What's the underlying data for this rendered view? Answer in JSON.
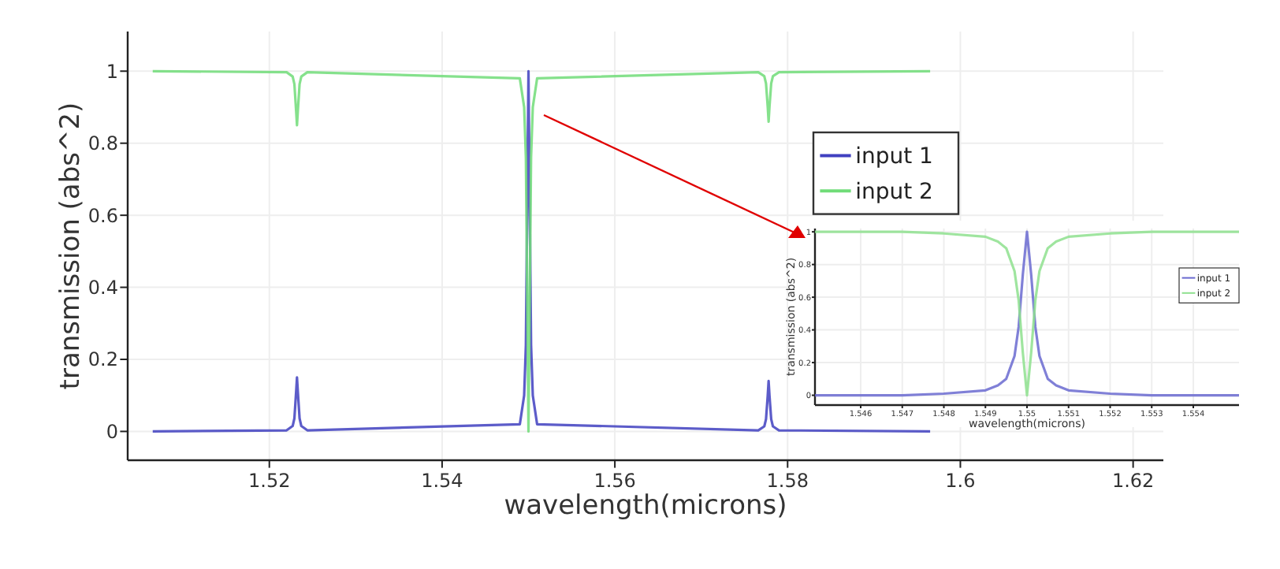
{
  "chart_data": [
    {
      "type": "line",
      "xlabel": "wavelength(microns)",
      "ylabel": "transmission (abs^2)",
      "x": [
        1.5065,
        1.522,
        1.5227,
        1.5229,
        1.5231,
        1.5232,
        1.5233,
        1.5235,
        1.5237,
        1.5244,
        1.549,
        1.5495,
        1.5497,
        1.5499,
        1.55,
        1.5501,
        1.5503,
        1.5505,
        1.551,
        1.5766,
        1.5773,
        1.5775,
        1.5777,
        1.5778,
        1.5779,
        1.5781,
        1.5783,
        1.579,
        1.5965
      ],
      "series": [
        {
          "name": "input 1",
          "color": "#4040c0",
          "values": [
            0,
            0.003,
            0.015,
            0.036,
            0.11,
            0.15,
            0.11,
            0.036,
            0.015,
            0.003,
            0.02,
            0.1,
            0.24,
            0.74,
            1,
            0.74,
            0.24,
            0.1,
            0.02,
            0.003,
            0.014,
            0.034,
            0.1,
            0.14,
            0.1,
            0.034,
            0.014,
            0.003,
            0
          ]
        },
        {
          "name": "input 2",
          "color": "#70dc78",
          "values": [
            1,
            0.997,
            0.985,
            0.964,
            0.89,
            0.85,
            0.89,
            0.964,
            0.985,
            0.997,
            0.98,
            0.9,
            0.76,
            0.26,
            0,
            0.26,
            0.76,
            0.9,
            0.98,
            0.997,
            0.986,
            0.966,
            0.9,
            0.86,
            0.9,
            0.966,
            0.986,
            0.997,
            1
          ]
        }
      ],
      "xlim": [
        1.5036,
        1.6235
      ],
      "xticks": [
        1.52,
        1.54,
        1.56,
        1.58,
        1.6,
        1.62
      ],
      "ylim": [
        -0.08,
        1.11
      ],
      "yticks": [
        0,
        0.2,
        0.4,
        0.6,
        0.8,
        1
      ],
      "grid": true,
      "legend": "right",
      "line_style": "solid",
      "marker": "none"
    },
    {
      "type": "line",
      "xlabel": "wavelength(microns)",
      "ylabel": "transmission (abs^2)",
      "x": [
        1.5449,
        1.546,
        1.547,
        1.548,
        1.549,
        1.5493,
        1.5495,
        1.5497,
        1.5498,
        1.5499,
        1.55,
        1.5501,
        1.5502,
        1.5503,
        1.5505,
        1.5507,
        1.551,
        1.552,
        1.553,
        1.554,
        1.5551
      ],
      "series": [
        {
          "name": "input 1",
          "color": "#6a6ad0",
          "values": [
            0,
            0,
            0,
            0.01,
            0.03,
            0.06,
            0.1,
            0.24,
            0.42,
            0.74,
            1,
            0.74,
            0.42,
            0.24,
            0.1,
            0.06,
            0.03,
            0.01,
            0,
            0,
            0
          ]
        },
        {
          "name": "input 2",
          "color": "#8ee08e",
          "values": [
            1,
            1,
            1,
            0.99,
            0.97,
            0.94,
            0.9,
            0.76,
            0.58,
            0.26,
            0,
            0.26,
            0.58,
            0.76,
            0.9,
            0.94,
            0.97,
            0.99,
            1,
            1,
            1
          ]
        }
      ],
      "xlim": [
        1.5449,
        1.5551
      ],
      "xticks": [
        1.546,
        1.547,
        1.548,
        1.549,
        1.55,
        1.551,
        1.552,
        1.553,
        1.554
      ],
      "ylim": [
        -0.06,
        1.02
      ],
      "yticks": [
        0,
        0.2,
        0.4,
        0.6,
        0.8,
        1
      ],
      "grid": true,
      "legend": "right",
      "line_style": "solid",
      "marker": "none"
    }
  ]
}
